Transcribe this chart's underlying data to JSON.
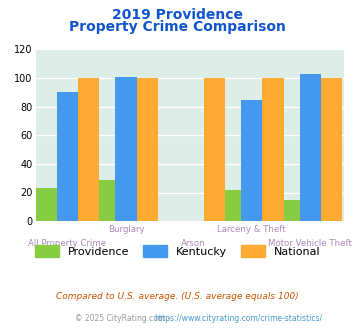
{
  "title_line1": "2019 Providence",
  "title_line2": "Property Crime Comparison",
  "categories": [
    "All Property Crime",
    "Burglary",
    "Arson",
    "Larceny & Theft",
    "Motor Vehicle Theft"
  ],
  "providence_values": [
    23,
    29,
    0,
    22,
    15
  ],
  "kentucky_values": [
    90,
    101,
    0,
    85,
    103
  ],
  "national_values": [
    100,
    100,
    100,
    100,
    100
  ],
  "providence_color": "#88cc44",
  "kentucky_color": "#4499ee",
  "national_color": "#ffaa33",
  "ylim": [
    0,
    120
  ],
  "yticks": [
    0,
    20,
    40,
    60,
    80,
    100,
    120
  ],
  "chart_bg": "#ddeee8",
  "legend_labels": [
    "Providence",
    "Kentucky",
    "National"
  ],
  "footnote1": "Compared to U.S. average. (U.S. average equals 100)",
  "footnote2": "© 2025 CityRating.com - https://www.cityrating.com/crime-statistics/",
  "title_color": "#1155cc",
  "label_color": "#aa88bb",
  "footnote1_color": "#cc5500",
  "footnote2_color": "#999999",
  "footnote2_url_color": "#4499cc"
}
